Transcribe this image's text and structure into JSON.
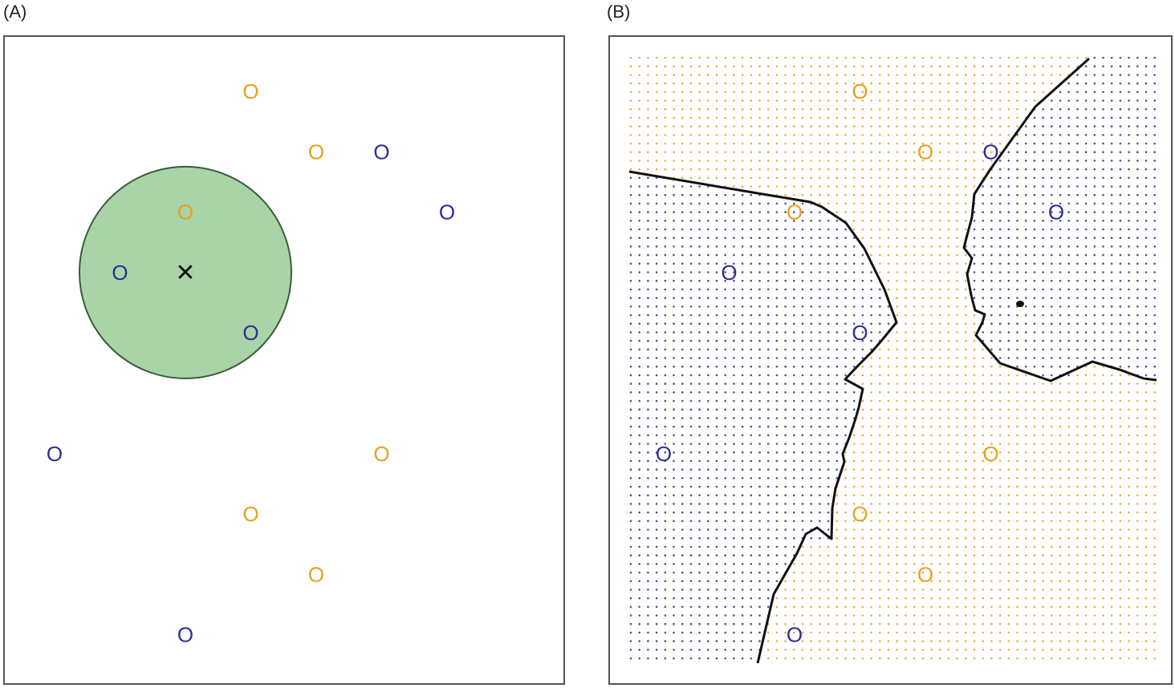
{
  "panels": {
    "a": {
      "label": "(A)"
    },
    "b": {
      "label": "(B)"
    }
  },
  "colors": {
    "blue_class": "#2f2f8f",
    "orange_class": "#e8a020",
    "neighborhood_fill": "#a8d4a8",
    "neighborhood_stroke": "#3c5a3c",
    "boundary": "#111111"
  },
  "point_glyph": "O",
  "test_point_glyph": "✕",
  "points": [
    {
      "cls": "orange",
      "col": 4,
      "row": 1
    },
    {
      "cls": "orange",
      "col": 5,
      "row": 2
    },
    {
      "cls": "blue",
      "col": 6,
      "row": 2
    },
    {
      "cls": "orange",
      "col": 3,
      "row": 3
    },
    {
      "cls": "blue",
      "col": 7,
      "row": 3
    },
    {
      "cls": "blue",
      "col": 2,
      "row": 4
    },
    {
      "cls": "blue",
      "col": 4,
      "row": 5
    },
    {
      "cls": "blue",
      "col": 1,
      "row": 7
    },
    {
      "cls": "orange",
      "col": 6,
      "row": 7
    },
    {
      "cls": "orange",
      "col": 4,
      "row": 8
    },
    {
      "cls": "orange",
      "col": 5,
      "row": 9
    },
    {
      "cls": "blue",
      "col": 3,
      "row": 10
    }
  ],
  "test_point": {
    "col": 3,
    "row": 4
  },
  "neighbors_k": 3
}
